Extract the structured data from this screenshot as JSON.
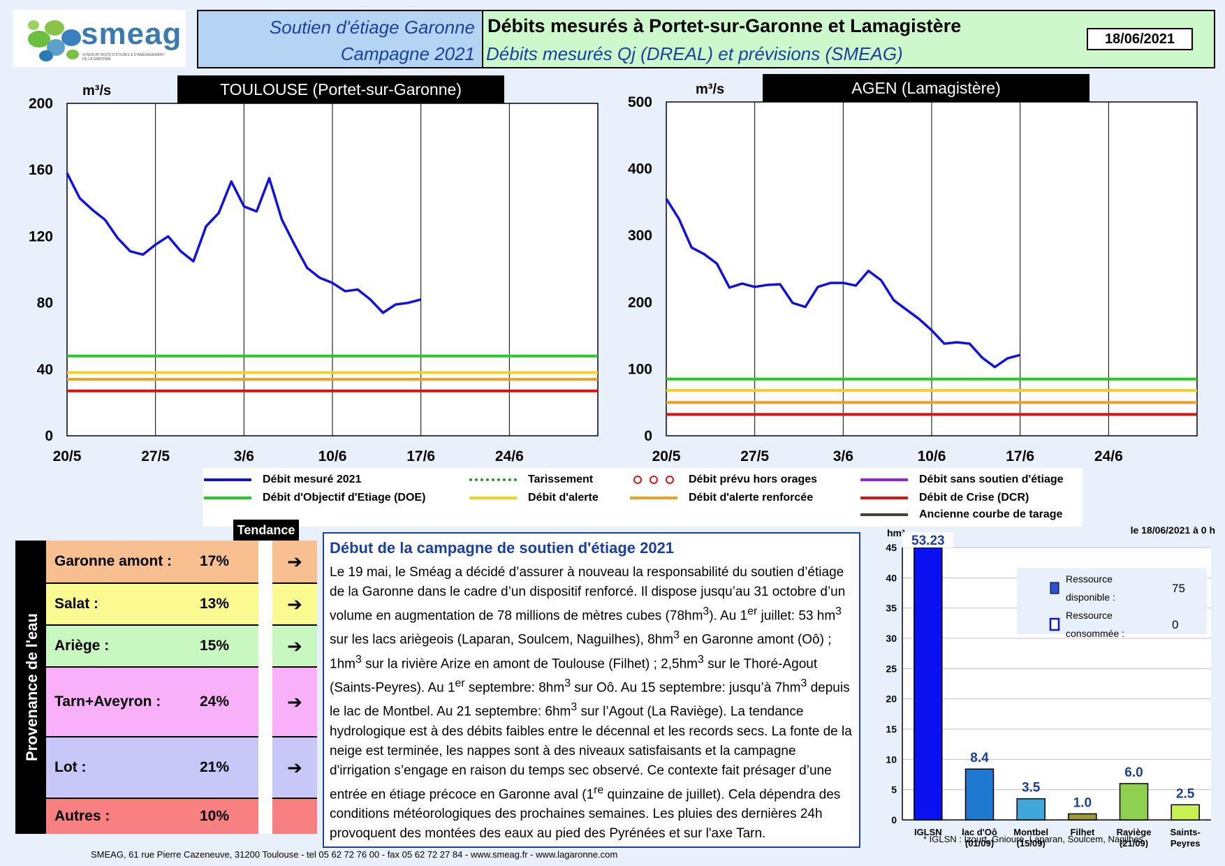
{
  "header": {
    "logo_text": "smeag",
    "logo_subtext": "SYNDICAT MIXTE D'ÉTUDES & D'AMÉNAGEMENT DE LA GARONNE",
    "left_line1": "Soutien d'étiage Garonne",
    "left_line2": "Campagne 2021",
    "right_line1": "Débits mesurés à Portet-sur-Garonne et Lamagistère",
    "right_line2": "Débits mesurés Qj (DREAL) et prévisions (SMEAG)",
    "date": "18/06/2021"
  },
  "chart_data": [
    {
      "type": "line",
      "title": "TOULOUSE (Portet-sur-Garonne)",
      "ylabel": "m³/s",
      "ylim": [
        0,
        200
      ],
      "yticks": [
        0,
        40,
        80,
        120,
        160,
        200
      ],
      "xticks": [
        "20/5",
        "27/5",
        "3/6",
        "10/6",
        "17/6",
        "24/6"
      ],
      "xlim_days": [
        0,
        42
      ],
      "grid": true,
      "series": [
        {
          "name": "Débit mesuré 2021",
          "color": "#1010e0",
          "x": [
            "20/5",
            "21/5",
            "22/5",
            "23/5",
            "24/5",
            "25/5",
            "26/5",
            "27/5",
            "28/5",
            "29/5",
            "30/5",
            "31/5",
            "1/6",
            "2/6",
            "3/6",
            "4/6",
            "5/6",
            "6/6",
            "7/6",
            "8/6",
            "9/6",
            "10/6",
            "11/6",
            "12/6",
            "13/6",
            "14/6",
            "15/6",
            "16/6",
            "17/6"
          ],
          "values": [
            158,
            143,
            136,
            130,
            119,
            111,
            109,
            115,
            120,
            111,
            105,
            126,
            134,
            153,
            138,
            135,
            155,
            130,
            115,
            101,
            95,
            92,
            87,
            88,
            82,
            74,
            79,
            80,
            82
          ]
        }
      ],
      "thresholds": [
        {
          "name": "Débit d'Objectif d'Etiage (DOE)",
          "value": 48,
          "color": "#22cc22"
        },
        {
          "name": "Débit d'alerte",
          "value": 38,
          "color": "#f5d020"
        },
        {
          "name": "Débit d'alerte renforcée",
          "value": 34,
          "color": "#f0a020"
        },
        {
          "name": "Débit de Crise (DCR)",
          "value": 27,
          "color": "#e01010"
        }
      ]
    },
    {
      "type": "line",
      "title": "AGEN (Lamagistère)",
      "ylabel": "m³/s",
      "ylim": [
        0,
        500
      ],
      "yticks": [
        0,
        100,
        200,
        300,
        400,
        500
      ],
      "xticks": [
        "20/5",
        "27/5",
        "3/6",
        "10/6",
        "17/6",
        "24/6"
      ],
      "xlim_days": [
        0,
        42
      ],
      "grid": true,
      "series": [
        {
          "name": "Débit mesuré 2021",
          "color": "#1010e0",
          "x": [
            "20/5",
            "21/5",
            "22/5",
            "23/5",
            "24/5",
            "25/5",
            "26/5",
            "27/5",
            "28/5",
            "29/5",
            "30/5",
            "31/5",
            "1/6",
            "2/6",
            "3/6",
            "4/6",
            "5/6",
            "6/6",
            "7/6",
            "8/6",
            "9/6",
            "10/6",
            "11/6",
            "12/6",
            "13/6",
            "14/6",
            "15/6",
            "16/6",
            "17/6"
          ],
          "values": [
            355,
            325,
            282,
            272,
            258,
            222,
            228,
            223,
            226,
            227,
            199,
            193,
            223,
            229,
            229,
            225,
            247,
            233,
            203,
            189,
            175,
            158,
            138,
            140,
            138,
            117,
            103,
            116,
            121
          ]
        }
      ],
      "thresholds": [
        {
          "name": "Débit d'Objectif d'Etiage (DOE)",
          "value": 85,
          "color": "#22cc22"
        },
        {
          "name": "Débit d'alerte",
          "value": 68,
          "color": "#f5d020"
        },
        {
          "name": "Débit d'alerte renforcée",
          "value": 50,
          "color": "#f0a020"
        },
        {
          "name": "Débit de Crise (DCR)",
          "value": 32,
          "color": "#e01010"
        }
      ]
    },
    {
      "type": "bar",
      "ylabel": "hm³",
      "ylim": [
        0,
        45
      ],
      "yticks": [
        0,
        5,
        10,
        15,
        20,
        25,
        30,
        35,
        40,
        45
      ],
      "categories": [
        "IGLSN",
        "lac d'Oô (01/09)",
        "Montbel (15/09)",
        "Filhet",
        "Raviège (21/09)",
        "Saints-Peyres"
      ],
      "category_lines": [
        [
          "IGLSN"
        ],
        [
          "lac d'Oô",
          "(01/09)"
        ],
        [
          "Montbel",
          "(15/09)"
        ],
        [
          "Filhet"
        ],
        [
          "Raviège",
          "(21/09)"
        ],
        [
          "Saints-",
          "Peyres"
        ]
      ],
      "values": [
        53.23,
        8.4,
        3.5,
        1.0,
        6.0,
        2.5
      ],
      "data_labels": [
        "53.23",
        "8.4",
        "3.5",
        "1.0",
        "6.0",
        "2.5"
      ],
      "colors": [
        "#0a10f0",
        "#1e78d0",
        "#40a8d8",
        "#9a9a38",
        "#90d050",
        "#c8f050"
      ],
      "date_label": "le 18/06/2021 à 0 h",
      "footnote": "* IGLSN : Izourt, Gnioure, Laparan, Soulcem, Nagilhes",
      "legend": {
        "available_label": [
          "Ressource",
          "disponible :"
        ],
        "available_value": "75",
        "consumed_label": [
          "Ressource",
          "consommée :"
        ],
        "consumed_value": "0"
      }
    }
  ],
  "legend": [
    {
      "label": "Débit mesuré 2021",
      "color": "#1010e0",
      "style": "solid"
    },
    {
      "label": "Tarissement",
      "color": "#1a9a1a",
      "style": "dotted"
    },
    {
      "label": "Débit prévu hors orages",
      "color": "#e01010",
      "style": "circles"
    },
    {
      "label": "Débit sans soutien d'étiage",
      "color": "#9a20e0",
      "style": "solid"
    },
    {
      "label": "Débit d'Objectif d'Etiage (DOE)",
      "color": "#22cc22",
      "style": "solid"
    },
    {
      "label": "Débit d'alerte",
      "color": "#f5d020",
      "style": "solid"
    },
    {
      "label": "Débit d'alerte renforcée",
      "color": "#f0a020",
      "style": "solid"
    },
    {
      "label": "Débit de Crise (DCR)",
      "color": "#e01010",
      "style": "solid"
    },
    {
      "label": "Ancienne courbe de tarage",
      "color": "#444433",
      "style": "solid"
    }
  ],
  "provenance": {
    "side_label": "Provenance de l'eau",
    "tendance_label": "Tendance",
    "rows": [
      {
        "name": "Garonne amont :",
        "pct": "17%",
        "color": "#f8c090",
        "arrow": "➔"
      },
      {
        "name": "Salat :",
        "pct": "13%",
        "color": "#fafa90",
        "arrow": "➔"
      },
      {
        "name": "Ariège :",
        "pct": "15%",
        "color": "#c8f8c0",
        "arrow": "➔"
      },
      {
        "name": "Tarn+Aveyron :",
        "pct": "24%",
        "color": "#f8b0f8",
        "arrow": "➔"
      },
      {
        "name": "Lot :",
        "pct": "21%",
        "color": "#c8c8f8",
        "arrow": "➔"
      },
      {
        "name": "Autres :",
        "pct": "10%",
        "color": "#f88080",
        "arrow": ""
      }
    ]
  },
  "text_panel": {
    "title": "Début de la campagne de soutien d'étiage 2021",
    "html": "Le 19 mai, le Sméag a décidé d’assurer à nouveau la responsabilité du soutien d’étiage de la Garonne dans le cadre d’un dispositif renforcé. Il dispose jusqu’au 31 octobre d’un volume en augmentation de 78 millions de mètres cubes (78hm<sup>3</sup>). Au 1<sup>er</sup> juillet: 53 hm<sup>3</sup> sur les lacs ariègeois (Laparan, Soulcem, Naguilhes), 8hm<sup>3</sup> en Garonne amont (Oô) ; 1hm<sup>3</sup> sur la rivière Arize en amont de Toulouse (Filhet) ; 2,5hm<sup>3</sup> sur le Thoré-Agout (Saints-Peyres). Au 1<sup>er</sup> septembre: 8hm<sup>3</sup> sur Oô. Au 15 septembre: jusqu’à 7hm<sup>3</sup> depuis le lac de Montbel. Au 21 septembre: 6hm<sup>3</sup> sur l’Agout (La Raviège). La tendance hydrologique est à des débits faibles entre le décennal et les records secs. La fonte de la neige est terminée, les nappes sont à des niveaux satisfaisants et la campagne d'irrigation s’engage en raison du temps sec observé. Ce contexte fait présager d’une entrée en étiage précoce en Garonne aval (1<sup>re</sup> quinzaine de juillet). Cela dépendra des conditions météorologiques des prochaines semaines. Les pluies des dernières 24h provoquent des montées des eaux  au pied des Pyrénées et sur l'axe Tarn."
  },
  "footer": "SMEAG, 61 rue Pierre Cazeneuve, 31200 Toulouse - tel 05 62 72 76 00 - fax 05 62 72 27 84  - www.smeag.fr - www.lagaronne.com"
}
